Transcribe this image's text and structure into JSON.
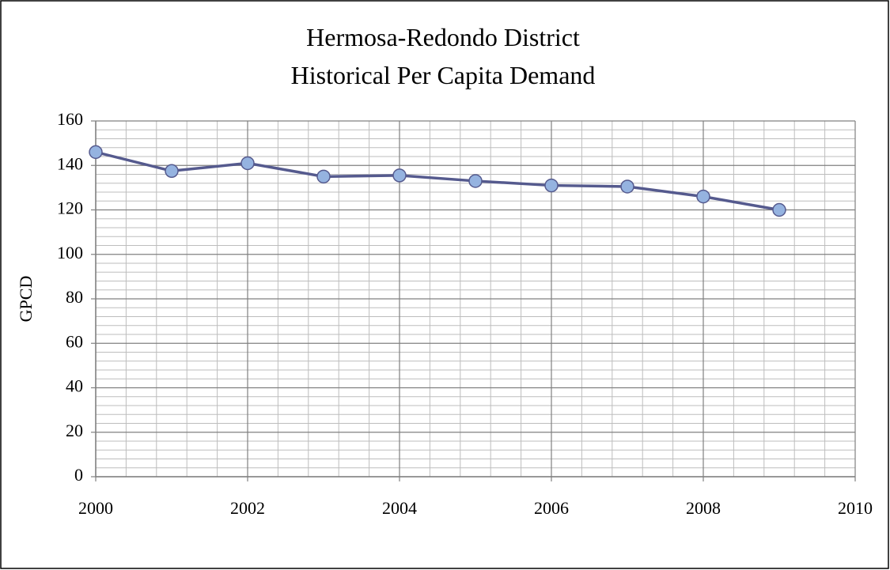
{
  "chart_data": {
    "type": "line",
    "title": [
      "Hermosa-Redondo District",
      "Historical Per Capita Demand"
    ],
    "y_label": "GPCD",
    "x": [
      2000,
      2001,
      2002,
      2003,
      2004,
      2005,
      2006,
      2007,
      2008,
      2009
    ],
    "values": [
      146,
      137.5,
      141,
      135,
      135.5,
      133,
      131,
      130.5,
      126,
      120
    ],
    "color": "#555a8e",
    "marker_color": "#95b3e0",
    "xlim": [
      2000,
      2010
    ],
    "xticks": [
      2000,
      2002,
      2004,
      2006,
      2008,
      2010
    ],
    "ylim": [
      0,
      160
    ],
    "yticks": [
      0,
      20,
      40,
      60,
      80,
      100,
      120,
      140,
      160
    ],
    "grid": true,
    "minor_grid": true
  }
}
